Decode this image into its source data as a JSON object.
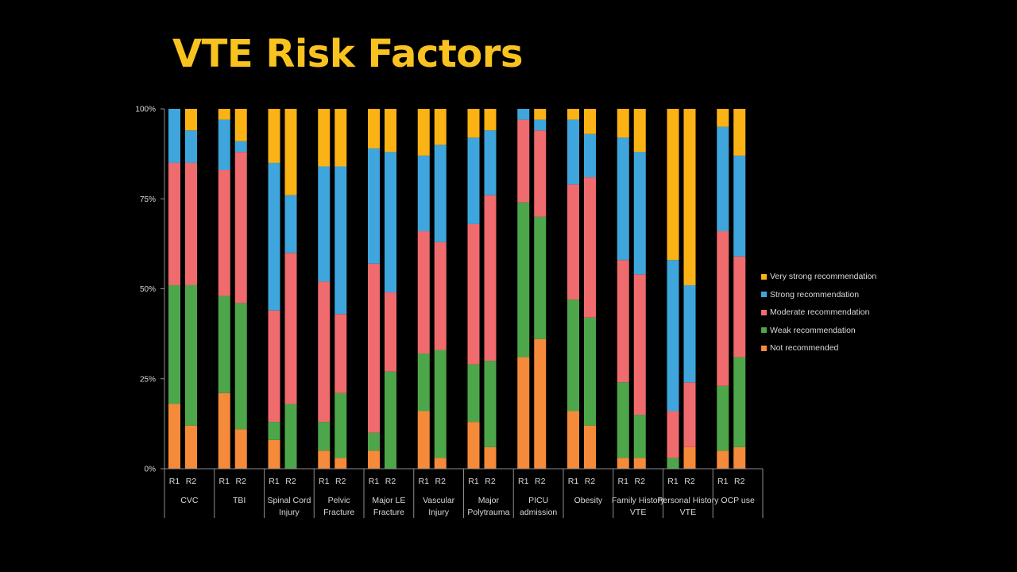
{
  "slide": {
    "title": "VTE Risk Factors"
  },
  "colors": {
    "Not recommended": "#f58b3a",
    "Weak recommendation": "#4ea64a",
    "Moderate recommendation": "#ef6b6d",
    "Strong recommendation": "#3ea6dc",
    "Very strong recommendation": "#fbb215"
  },
  "chart_data": {
    "type": "bar",
    "stacked": "percent",
    "title": "",
    "xlabel": "",
    "ylabel": "",
    "ylim": [
      0,
      100
    ],
    "y_ticks": [
      "0%",
      "25%",
      "50%",
      "75%",
      "100%"
    ],
    "grid": false,
    "legend_position": "right",
    "legend_order": [
      "Very strong recommendation",
      "Strong recommendation",
      "Moderate recommendation",
      "Weak recommendation",
      "Not recommended"
    ],
    "groups": [
      {
        "label": "CVC",
        "bars": [
          {
            "label": "R1",
            "values": [
              18,
              33,
              34,
              15,
              0
            ]
          },
          {
            "label": "R2",
            "values": [
              12,
              39,
              34,
              9,
              6
            ]
          }
        ]
      },
      {
        "label": "TBI",
        "bars": [
          {
            "label": "R1",
            "values": [
              21,
              27,
              35,
              14,
              3
            ]
          },
          {
            "label": "R2",
            "values": [
              11,
              35,
              42,
              3,
              9
            ]
          }
        ]
      },
      {
        "label": "Spinal Cord Injury",
        "bars": [
          {
            "label": "R1",
            "values": [
              8,
              5,
              31,
              41,
              15
            ]
          },
          {
            "label": "R2",
            "values": [
              0,
              18,
              42,
              16,
              24
            ]
          }
        ]
      },
      {
        "label": "Pelvic Fracture",
        "bars": [
          {
            "label": "R1",
            "values": [
              5,
              8,
              39,
              32,
              16
            ]
          },
          {
            "label": "R2",
            "values": [
              3,
              18,
              22,
              41,
              16
            ]
          }
        ]
      },
      {
        "label": "Major LE Fracture",
        "bars": [
          {
            "label": "R1",
            "values": [
              5,
              5,
              47,
              32,
              11
            ]
          },
          {
            "label": "R2",
            "values": [
              0,
              27,
              22,
              39,
              12
            ]
          }
        ]
      },
      {
        "label": "Vascular Injury",
        "bars": [
          {
            "label": "R1",
            "values": [
              16,
              16,
              34,
              21,
              13
            ]
          },
          {
            "label": "R2",
            "values": [
              3,
              30,
              30,
              27,
              10
            ]
          }
        ]
      },
      {
        "label": "Major Polytrauma",
        "bars": [
          {
            "label": "R1",
            "values": [
              13,
              16,
              39,
              24,
              8
            ]
          },
          {
            "label": "R2",
            "values": [
              6,
              24,
              46,
              18,
              6
            ]
          }
        ]
      },
      {
        "label": "PICU admission",
        "bars": [
          {
            "label": "R1",
            "values": [
              31,
              43,
              23,
              3,
              0
            ]
          },
          {
            "label": "R2",
            "values": [
              36,
              34,
              24,
              3,
              3
            ]
          }
        ]
      },
      {
        "label": "Obesity",
        "bars": [
          {
            "label": "R1",
            "values": [
              16,
              31,
              32,
              18,
              3
            ]
          },
          {
            "label": "R2",
            "values": [
              12,
              30,
              39,
              12,
              7
            ]
          }
        ]
      },
      {
        "label": "Family History VTE",
        "bars": [
          {
            "label": "R1",
            "values": [
              3,
              21,
              34,
              34,
              8
            ]
          },
          {
            "label": "R2",
            "values": [
              3,
              12,
              39,
              34,
              12
            ]
          }
        ]
      },
      {
        "label": "Personal History VTE",
        "bars": [
          {
            "label": "R1",
            "values": [
              0,
              3,
              13,
              42,
              42
            ]
          },
          {
            "label": "R2",
            "values": [
              6,
              0,
              18,
              27,
              49
            ]
          }
        ]
      },
      {
        "label": "OCP use",
        "bars": [
          {
            "label": "R1",
            "values": [
              5,
              18,
              43,
              29,
              5
            ]
          },
          {
            "label": "R2",
            "values": [
              6,
              25,
              28,
              28,
              13
            ]
          }
        ]
      }
    ],
    "stack_order": [
      "Not recommended",
      "Weak recommendation",
      "Moderate recommendation",
      "Strong recommendation",
      "Very strong recommendation"
    ]
  }
}
